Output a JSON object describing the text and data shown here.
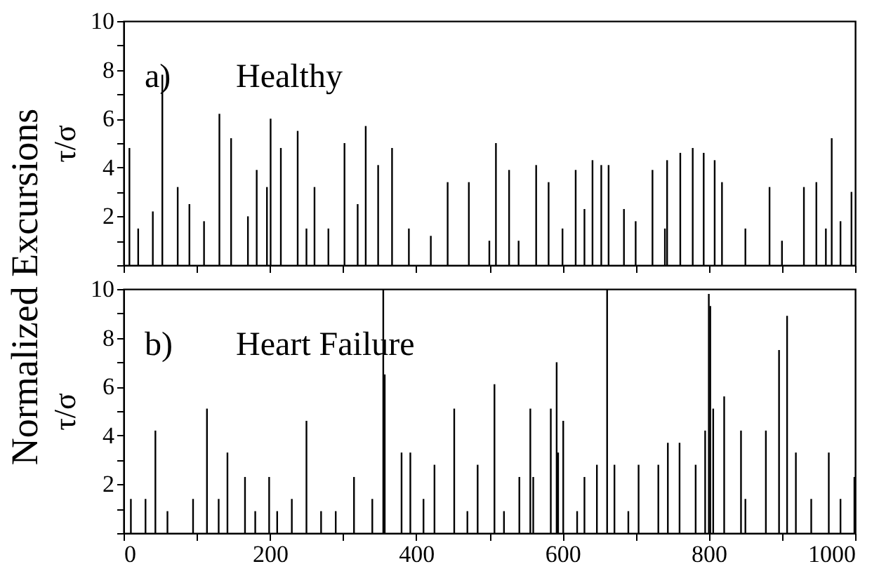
{
  "chart_data": [
    {
      "type": "bar",
      "ylabel": "τ/σ",
      "annotations": [
        "a)",
        "Healthy",
        "Normalized Excursions"
      ],
      "tick_labels": "y",
      "xlim": [
        0,
        1000
      ],
      "ylim": [
        0,
        10
      ],
      "xticks": [
        0,
        {
          "value": 100,
          "label": null
        },
        {
          "value": 200,
          "label": null
        },
        {
          "value": 300,
          "label": null
        },
        {
          "value": 400,
          "label": null
        },
        {
          "value": 500,
          "label": null
        },
        {
          "value": 600,
          "label": null
        },
        {
          "value": 700,
          "label": null
        },
        {
          "value": 800,
          "label": null
        },
        {
          "value": 900,
          "label": null
        },
        1000
      ],
      "yticks": [
        {
          "value": 0,
          "label": null
        },
        {
          "value": 1,
          "label": null
        },
        2,
        {
          "value": 3,
          "label": null
        },
        4,
        {
          "value": 5,
          "label": null
        },
        6,
        {
          "value": 7,
          "label": null
        },
        8,
        {
          "value": 9,
          "label": null
        },
        10
      ],
      "series": [
        {
          "color": "#000000",
          "x": [
            8,
            20,
            40,
            53,
            74,
            90,
            110,
            131,
            147,
            170,
            182,
            196,
            201,
            215,
            238,
            250,
            261,
            280,
            302,
            320,
            331,
            348,
            367,
            390,
            420,
            443,
            472,
            500,
            509,
            527,
            540,
            564,
            581,
            600,
            618,
            630,
            641,
            653,
            663,
            684,
            700,
            723,
            740,
            743,
            761,
            778,
            793,
            808,
            818,
            850,
            883,
            900,
            930,
            947,
            960,
            968,
            980,
            995
          ],
          "values": [
            4.8,
            1.5,
            2.2,
            7.8,
            3.2,
            2.5,
            1.8,
            6.2,
            5.2,
            2.0,
            3.9,
            3.2,
            6.0,
            4.8,
            5.5,
            1.5,
            3.2,
            1.5,
            5.0,
            2.5,
            5.7,
            4.1,
            4.8,
            1.5,
            1.2,
            3.4,
            3.4,
            1.0,
            5.0,
            3.9,
            1.0,
            4.1,
            3.4,
            1.5,
            3.9,
            2.3,
            4.3,
            4.1,
            4.1,
            2.3,
            1.8,
            3.9,
            1.5,
            4.3,
            4.6,
            4.8,
            4.6,
            4.3,
            3.4,
            1.5,
            3.2,
            1.0,
            3.2,
            3.4,
            1.5,
            5.2,
            1.8,
            3.0
          ]
        }
      ]
    },
    {
      "type": "bar",
      "ylabel": "τ/σ",
      "annotations": [
        "b)",
        "Heart Failure"
      ],
      "xlim": [
        0,
        1000
      ],
      "ylim": [
        0,
        10
      ],
      "xticks": [
        0,
        {
          "value": 100,
          "label": null
        },
        200,
        {
          "value": 300,
          "label": null
        },
        400,
        {
          "value": 500,
          "label": null
        },
        600,
        {
          "value": 700,
          "label": null
        },
        800,
        {
          "value": 900,
          "label": null
        },
        1000
      ],
      "yticks": [
        {
          "value": 0,
          "label": null
        },
        {
          "value": 1,
          "label": null
        },
        2,
        {
          "value": 3,
          "label": null
        },
        4,
        {
          "value": 5,
          "label": null
        },
        6,
        {
          "value": 7,
          "label": null
        },
        8,
        {
          "value": 9,
          "label": null
        },
        10
      ],
      "series": [
        {
          "color": "#000000",
          "x": [
            10,
            30,
            43.5,
            60,
            95,
            114,
            130,
            142,
            166,
            180,
            199,
            210,
            230,
            250,
            270,
            290,
            315,
            340,
            355,
            357,
            380,
            392,
            410,
            425,
            452,
            470,
            484,
            507,
            520,
            541,
            556,
            560,
            584,
            592,
            594,
            601,
            620,
            630,
            647,
            661,
            671,
            690,
            704,
            731,
            744,
            760,
            782,
            795,
            800,
            802,
            806,
            821,
            844,
            850,
            878,
            896,
            907,
            919,
            940,
            964,
            980,
            999
          ],
          "values": [
            1.4,
            1.4,
            4.2,
            0.9,
            1.4,
            5.1,
            1.4,
            3.3,
            2.3,
            0.9,
            2.3,
            0.9,
            1.4,
            4.6,
            0.9,
            0.9,
            2.3,
            1.4,
            10,
            6.5,
            3.3,
            3.3,
            1.4,
            2.8,
            5.1,
            0.9,
            2.8,
            6.1,
            0.9,
            2.3,
            5.1,
            2.3,
            5.1,
            7.0,
            3.3,
            4.6,
            0.9,
            2.3,
            2.8,
            10,
            2.8,
            0.9,
            2.8,
            2.8,
            3.7,
            3.7,
            2.8,
            4.2,
            9.8,
            9.3,
            5.1,
            5.6,
            4.2,
            1.4,
            4.2,
            7.5,
            8.9,
            3.3,
            1.4,
            3.3,
            1.4,
            2.3
          ]
        }
      ]
    }
  ]
}
